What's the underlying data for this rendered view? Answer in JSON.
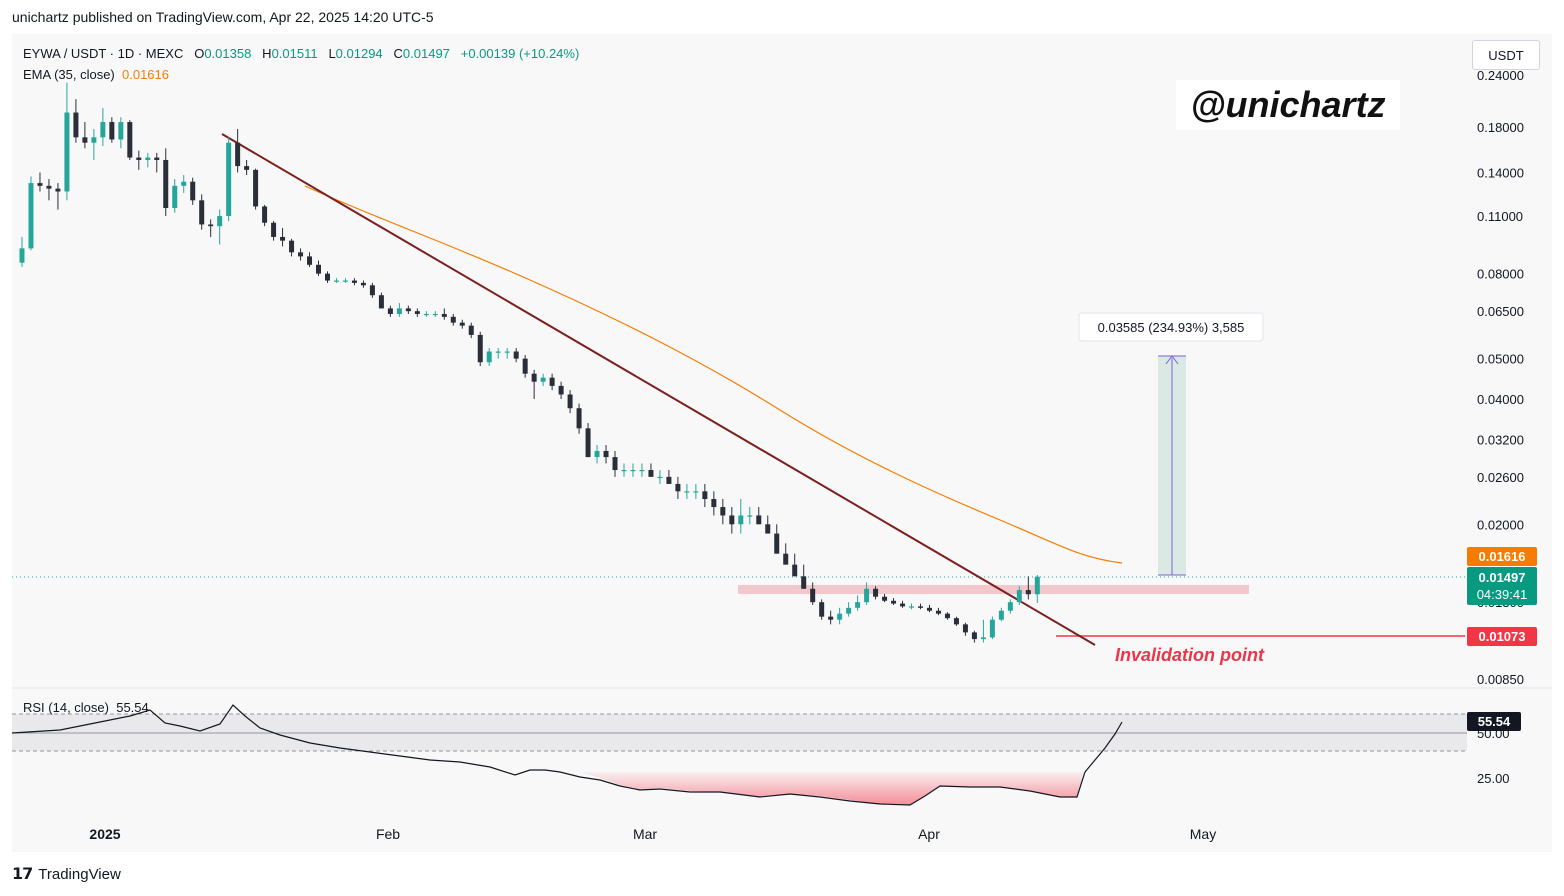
{
  "header": {
    "published": "unichartz published on TradingView.com, Apr 22, 2025 14:20 UTC-5"
  },
  "legend": {
    "symbol": "EYWA / USDT · 1D · MEXC",
    "o_label": "O",
    "o_value": "0.01358",
    "h_label": "H",
    "h_value": "0.01511",
    "l_label": "L",
    "l_value": "0.01294",
    "c_label": "C",
    "c_value": "0.01497",
    "change": "+0.00139 (+10.24%)",
    "ema_label": "EMA (35, close)",
    "ema_value": "0.01616",
    "rsi_label": "RSI (14, close)",
    "rsi_value": "55.54"
  },
  "currency_button": "USDT",
  "watermark": "@unichartz",
  "annotations": {
    "measure": "0.03585 (234.93%) 3,585",
    "invalidation": "Invalidation point"
  },
  "price_labels": {
    "ema": "0.01616",
    "last": "0.01497",
    "countdown": "04:39:41",
    "invalidation": "0.01073",
    "rsi": "55.54"
  },
  "footer": {
    "brand": "TradingView"
  },
  "colors": {
    "up": "#26a69a",
    "down": "#2a2e39",
    "ema": "#f57c00",
    "trend": "#7b1f1f",
    "invalid": "#f23645",
    "zone": "#f2b8bd"
  },
  "chart_data": {
    "type": "candlestick",
    "scale": "log",
    "price_ticks": [
      "0.24000",
      "0.18000",
      "0.14000",
      "0.11000",
      "0.08000",
      "0.06500",
      "0.05000",
      "0.04000",
      "0.03200",
      "0.02600",
      "0.02000",
      "0.01300",
      "0.00850"
    ],
    "rsi_ticks": [
      "50.00",
      "25.00"
    ],
    "x_labels": [
      "2025",
      "Feb",
      "Mar",
      "Apr",
      "May"
    ],
    "candles": [
      [
        0.085,
        0.098,
        0.083,
        0.092
      ],
      [
        0.092,
        0.137,
        0.091,
        0.132
      ],
      [
        0.132,
        0.14,
        0.126,
        0.13
      ],
      [
        0.13,
        0.135,
        0.12,
        0.128
      ],
      [
        0.128,
        0.132,
        0.114,
        0.126
      ],
      [
        0.126,
        0.23,
        0.12,
        0.195
      ],
      [
        0.195,
        0.21,
        0.165,
        0.17
      ],
      [
        0.17,
        0.185,
        0.16,
        0.165
      ],
      [
        0.165,
        0.178,
        0.15,
        0.17
      ],
      [
        0.17,
        0.2,
        0.162,
        0.185
      ],
      [
        0.185,
        0.19,
        0.165,
        0.168
      ],
      [
        0.168,
        0.19,
        0.16,
        0.185
      ],
      [
        0.185,
        0.187,
        0.15,
        0.152
      ],
      [
        0.152,
        0.158,
        0.142,
        0.15
      ],
      [
        0.15,
        0.156,
        0.144,
        0.152
      ],
      [
        0.152,
        0.156,
        0.14,
        0.15
      ],
      [
        0.15,
        0.16,
        0.11,
        0.115
      ],
      [
        0.115,
        0.135,
        0.112,
        0.13
      ],
      [
        0.13,
        0.138,
        0.125,
        0.133
      ],
      [
        0.133,
        0.136,
        0.117,
        0.12
      ],
      [
        0.12,
        0.124,
        0.102,
        0.105
      ],
      [
        0.105,
        0.108,
        0.098,
        0.104
      ],
      [
        0.104,
        0.114,
        0.094,
        0.11
      ],
      [
        0.11,
        0.17,
        0.107,
        0.165
      ],
      [
        0.165,
        0.178,
        0.14,
        0.145
      ],
      [
        0.145,
        0.15,
        0.138,
        0.142
      ],
      [
        0.142,
        0.143,
        0.114,
        0.116
      ],
      [
        0.116,
        0.117,
        0.104,
        0.106
      ],
      [
        0.106,
        0.107,
        0.096,
        0.098
      ],
      [
        0.098,
        0.103,
        0.093,
        0.096
      ],
      [
        0.096,
        0.097,
        0.088,
        0.09
      ],
      [
        0.09,
        0.092,
        0.086,
        0.088
      ],
      [
        0.088,
        0.09,
        0.083,
        0.084
      ],
      [
        0.084,
        0.086,
        0.079,
        0.08
      ],
      [
        0.08,
        0.081,
        0.076,
        0.077
      ],
      [
        0.077,
        0.078,
        0.076,
        0.077
      ],
      [
        0.077,
        0.078,
        0.076,
        0.077
      ],
      [
        0.077,
        0.078,
        0.075,
        0.076
      ],
      [
        0.076,
        0.077,
        0.074,
        0.075
      ],
      [
        0.075,
        0.076,
        0.07,
        0.071
      ],
      [
        0.071,
        0.072,
        0.066,
        0.066
      ],
      [
        0.066,
        0.067,
        0.063,
        0.064
      ],
      [
        0.064,
        0.068,
        0.063,
        0.066
      ],
      [
        0.066,
        0.067,
        0.064,
        0.065
      ],
      [
        0.065,
        0.066,
        0.063,
        0.064
      ],
      [
        0.064,
        0.065,
        0.063,
        0.064
      ],
      [
        0.064,
        0.065,
        0.063,
        0.064
      ],
      [
        0.064,
        0.066,
        0.062,
        0.063
      ],
      [
        0.063,
        0.064,
        0.06,
        0.061
      ],
      [
        0.061,
        0.062,
        0.059,
        0.06
      ],
      [
        0.06,
        0.061,
        0.056,
        0.057
      ],
      [
        0.057,
        0.058,
        0.048,
        0.049
      ],
      [
        0.049,
        0.053,
        0.048,
        0.052
      ],
      [
        0.052,
        0.053,
        0.05,
        0.052
      ],
      [
        0.052,
        0.053,
        0.05,
        0.052
      ],
      [
        0.052,
        0.053,
        0.049,
        0.05
      ],
      [
        0.05,
        0.051,
        0.045,
        0.046
      ],
      [
        0.046,
        0.047,
        0.04,
        0.044
      ],
      [
        0.044,
        0.046,
        0.043,
        0.045
      ],
      [
        0.045,
        0.046,
        0.042,
        0.043
      ],
      [
        0.043,
        0.044,
        0.04,
        0.041
      ],
      [
        0.041,
        0.042,
        0.037,
        0.038
      ],
      [
        0.038,
        0.039,
        0.033,
        0.034
      ],
      [
        0.034,
        0.035,
        0.029,
        0.029
      ],
      [
        0.029,
        0.031,
        0.028,
        0.03
      ],
      [
        0.03,
        0.031,
        0.028,
        0.029
      ],
      [
        0.029,
        0.03,
        0.026,
        0.027
      ],
      [
        0.027,
        0.028,
        0.026,
        0.027
      ],
      [
        0.027,
        0.028,
        0.026,
        0.027
      ],
      [
        0.027,
        0.028,
        0.026,
        0.027
      ],
      [
        0.027,
        0.028,
        0.026,
        0.026
      ],
      [
        0.026,
        0.027,
        0.025,
        0.026
      ],
      [
        0.026,
        0.027,
        0.025,
        0.025
      ],
      [
        0.025,
        0.026,
        0.023,
        0.024
      ],
      [
        0.024,
        0.025,
        0.023,
        0.024
      ],
      [
        0.024,
        0.025,
        0.023,
        0.024
      ],
      [
        0.024,
        0.025,
        0.022,
        0.023
      ],
      [
        0.023,
        0.024,
        0.021,
        0.022
      ],
      [
        0.022,
        0.023,
        0.02,
        0.021
      ],
      [
        0.021,
        0.022,
        0.019,
        0.02
      ],
      [
        0.02,
        0.023,
        0.019,
        0.021
      ],
      [
        0.021,
        0.022,
        0.02,
        0.021
      ],
      [
        0.021,
        0.022,
        0.02,
        0.02
      ],
      [
        0.02,
        0.021,
        0.019,
        0.019
      ],
      [
        0.019,
        0.02,
        0.017,
        0.017
      ],
      [
        0.017,
        0.018,
        0.016,
        0.016
      ],
      [
        0.016,
        0.017,
        0.015,
        0.015
      ],
      [
        0.015,
        0.016,
        0.014,
        0.014
      ],
      [
        0.014,
        0.0145,
        0.0128,
        0.013
      ],
      [
        0.013,
        0.0132,
        0.0118,
        0.012
      ],
      [
        0.012,
        0.0124,
        0.0115,
        0.0118
      ],
      [
        0.0118,
        0.0126,
        0.0115,
        0.0122
      ],
      [
        0.0122,
        0.013,
        0.012,
        0.0126
      ],
      [
        0.0126,
        0.0135,
        0.0124,
        0.013
      ],
      [
        0.013,
        0.0145,
        0.0128,
        0.014
      ],
      [
        0.014,
        0.0142,
        0.0132,
        0.0134
      ],
      [
        0.0134,
        0.0136,
        0.013,
        0.0131
      ],
      [
        0.0131,
        0.0133,
        0.0128,
        0.0129
      ],
      [
        0.0129,
        0.0131,
        0.0126,
        0.0127
      ],
      [
        0.0127,
        0.0129,
        0.0125,
        0.0127
      ],
      [
        0.0127,
        0.0129,
        0.0125,
        0.0126
      ],
      [
        0.0126,
        0.0128,
        0.0123,
        0.0124
      ],
      [
        0.0124,
        0.0126,
        0.0121,
        0.0122
      ],
      [
        0.0122,
        0.0123,
        0.0118,
        0.0119
      ],
      [
        0.0119,
        0.012,
        0.0114,
        0.0115
      ],
      [
        0.0115,
        0.0116,
        0.0108,
        0.011
      ],
      [
        0.011,
        0.0111,
        0.0104,
        0.0106
      ],
      [
        0.0106,
        0.0118,
        0.0104,
        0.0107
      ],
      [
        0.0107,
        0.012,
        0.0106,
        0.0118
      ],
      [
        0.0118,
        0.0126,
        0.0117,
        0.0124
      ],
      [
        0.0124,
        0.0132,
        0.0122,
        0.013
      ],
      [
        0.013,
        0.0142,
        0.0128,
        0.0139
      ],
      [
        0.0139,
        0.015,
        0.0132,
        0.01358
      ],
      [
        0.01358,
        0.01511,
        0.01294,
        0.01497
      ]
    ]
  }
}
